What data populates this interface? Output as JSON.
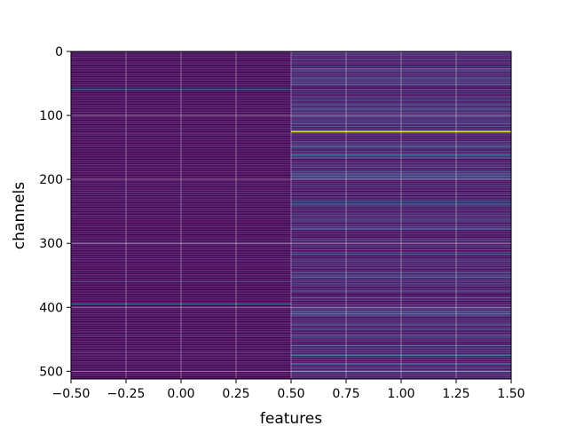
{
  "chart_data": {
    "type": "heatmap",
    "title": "",
    "xlabel": "features",
    "ylabel": "channels",
    "xlim": [
      -0.5,
      1.5
    ],
    "ylim": [
      512,
      0
    ],
    "y_inverted": true,
    "grid": true,
    "colormap": "viridis",
    "n_rows": 512,
    "n_columns": 2,
    "column_centers": [
      0,
      1
    ],
    "x_ticks": [
      -0.5,
      -0.25,
      0.0,
      0.25,
      0.5,
      0.75,
      1.0,
      1.25,
      1.5
    ],
    "x_tick_labels": [
      "−0.50",
      "−0.25",
      "0.00",
      "0.25",
      "0.50",
      "0.75",
      "1.00",
      "1.25",
      "1.50"
    ],
    "y_ticks": [
      0,
      100,
      200,
      300,
      400,
      500
    ],
    "y_tick_labels": [
      "0",
      "100",
      "200",
      "300",
      "400",
      "500"
    ],
    "value_range": [
      0,
      1
    ],
    "columns": [
      {
        "index": 0,
        "baseline_low": 0.0,
        "baseline_high": 0.06,
        "highlights": [
          {
            "channel": 59,
            "value": 0.42
          },
          {
            "channel": 395,
            "value": 0.55
          },
          {
            "channel": 360,
            "value": 0.2
          },
          {
            "channel": 128,
            "value": 0.14
          },
          {
            "channel": 220,
            "value": 0.12
          },
          {
            "channel": 300,
            "value": 0.16
          },
          {
            "channel": 470,
            "value": 0.15
          }
        ]
      },
      {
        "index": 1,
        "baseline_low": 0.02,
        "baseline_high": 0.3,
        "highlights": [
          {
            "channel": 125,
            "value": 1.0
          },
          {
            "channel": 126,
            "value": 0.95
          },
          {
            "channel": 27,
            "value": 0.45
          },
          {
            "channel": 42,
            "value": 0.4
          },
          {
            "channel": 150,
            "value": 0.55
          },
          {
            "channel": 162,
            "value": 0.5
          },
          {
            "channel": 195,
            "value": 0.45
          },
          {
            "channel": 240,
            "value": 0.5
          },
          {
            "channel": 262,
            "value": 0.45
          },
          {
            "channel": 278,
            "value": 0.4
          },
          {
            "channel": 350,
            "value": 0.45
          },
          {
            "channel": 385,
            "value": 0.4
          },
          {
            "channel": 410,
            "value": 0.4
          },
          {
            "channel": 460,
            "value": 0.45
          },
          {
            "channel": 475,
            "value": 0.62
          },
          {
            "channel": 488,
            "value": 0.4
          },
          {
            "channel": 500,
            "value": 0.45
          }
        ]
      }
    ]
  }
}
